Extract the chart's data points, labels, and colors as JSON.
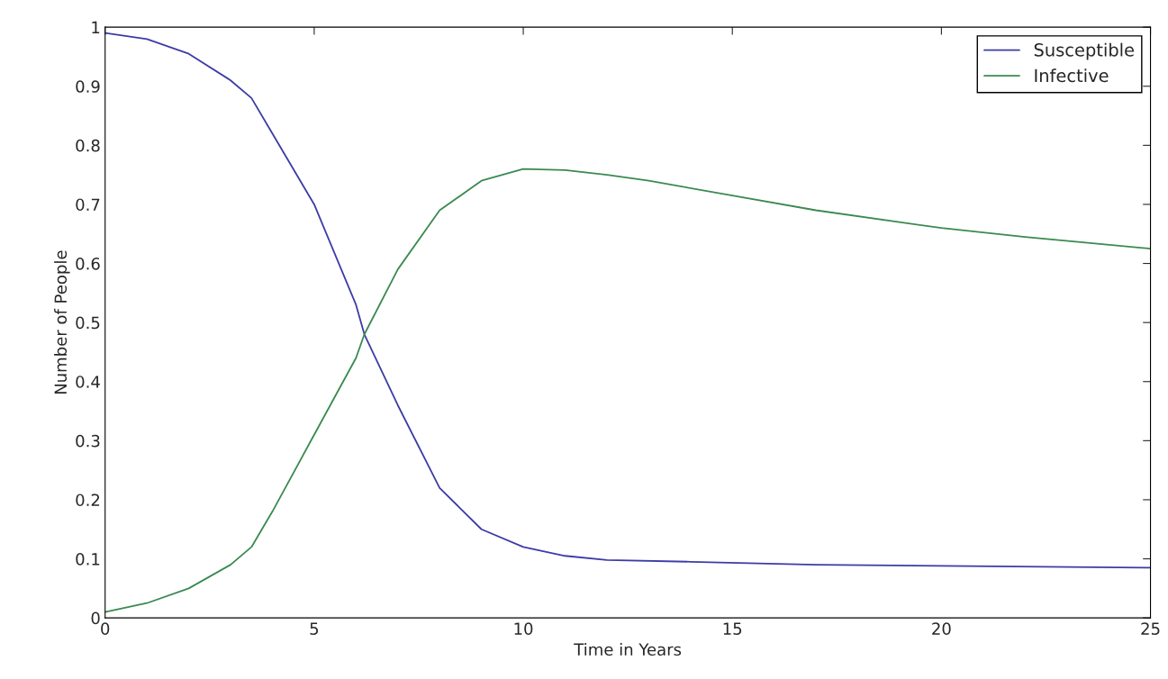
{
  "chart_data": {
    "type": "line",
    "xlabel": "Time in Years",
    "ylabel": "Number of People",
    "xlim": [
      0,
      25
    ],
    "xticks": [
      0,
      5,
      10,
      15,
      20,
      25
    ],
    "ylim": [
      0,
      1
    ],
    "yticks": [
      0,
      0.1,
      0.2,
      0.3,
      0.4,
      0.5,
      0.6,
      0.7,
      0.8,
      0.9,
      1
    ],
    "grid": false,
    "legend": "top right",
    "series": [
      {
        "name": "Susceptible",
        "color": "#3c3ca8",
        "x": [
          0,
          1,
          2,
          3,
          3.5,
          4,
          5,
          6,
          6.2,
          7,
          8,
          9,
          10,
          11,
          12,
          14,
          17,
          20,
          25
        ],
        "values": [
          0.99,
          0.98,
          0.955,
          0.91,
          0.88,
          0.82,
          0.7,
          0.53,
          0.48,
          0.36,
          0.22,
          0.15,
          0.12,
          0.105,
          0.098,
          0.095,
          0.09,
          0.088,
          0.085
        ]
      },
      {
        "name": "Infective",
        "color": "#3a8a50",
        "x": [
          0,
          1,
          2,
          3,
          3.5,
          4,
          5,
          6,
          6.2,
          7,
          8,
          9,
          10,
          11,
          12,
          13,
          15,
          17,
          20,
          22,
          25
        ],
        "values": [
          0.01,
          0.025,
          0.05,
          0.09,
          0.12,
          0.18,
          0.31,
          0.44,
          0.48,
          0.59,
          0.69,
          0.74,
          0.76,
          0.758,
          0.75,
          0.74,
          0.715,
          0.69,
          0.66,
          0.645,
          0.625
        ]
      }
    ]
  }
}
